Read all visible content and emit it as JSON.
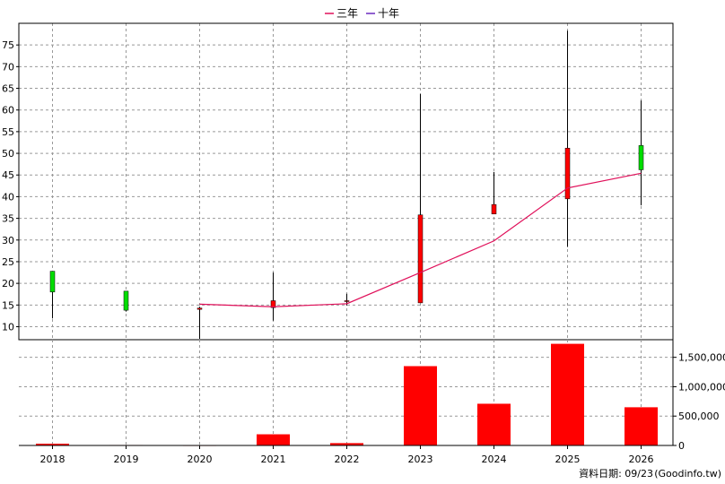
{
  "legend": {
    "ma3_label": "三年",
    "ma10_label": "十年"
  },
  "footer": {
    "date_label": "資料日期: 09/23",
    "source": "(Goodinfo.tw)"
  },
  "colors": {
    "up": "#ff0000",
    "down": "#00dd00",
    "ma3": "#e0105a",
    "ma10": "#6a2bbf",
    "volume": "#ff0000",
    "wick": "#000000",
    "grid": "#999999"
  },
  "chart_data": [
    {
      "type": "candlestick",
      "title": "",
      "ylim": [
        7,
        80
      ],
      "y_ticks": [
        10,
        15,
        20,
        25,
        30,
        35,
        40,
        45,
        50,
        55,
        60,
        65,
        70,
        75
      ],
      "categories": [
        "2018",
        "2019",
        "2020",
        "2021",
        "2022",
        "2023",
        "2024",
        "2025",
        "2026"
      ],
      "candles": [
        {
          "year": "2018",
          "open": 22.8,
          "close": 18.0,
          "high": 22.8,
          "low": 11.9
        },
        {
          "year": "2019",
          "open": 18.2,
          "close": 13.8,
          "high": 18.2,
          "low": 13.5
        },
        {
          "year": "2020",
          "open": 14.0,
          "close": 14.3,
          "high": 14.6,
          "low": 7.2
        },
        {
          "year": "2021",
          "open": 14.4,
          "close": 16.0,
          "high": 22.5,
          "low": 11.4
        },
        {
          "year": "2022",
          "open": 16.0,
          "close": 16.0,
          "high": 17.6,
          "low": 14.9
        },
        {
          "year": "2023",
          "open": 15.5,
          "close": 35.8,
          "high": 63.7,
          "low": 15.5
        },
        {
          "year": "2024",
          "open": 36.0,
          "close": 38.2,
          "high": 45.7,
          "low": 36.0
        },
        {
          "year": "2025",
          "open": 39.5,
          "close": 51.2,
          "high": 78.3,
          "low": 28.4
        },
        {
          "year": "2026",
          "open": 51.8,
          "close": 46.2,
          "high": 62.2,
          "low": 38.0
        }
      ],
      "series": [
        {
          "name": "三年",
          "x": [
            "2020",
            "2021",
            "2022",
            "2023",
            "2024",
            "2025",
            "2026"
          ],
          "values": [
            15.2,
            14.6,
            15.3,
            22.5,
            29.8,
            42.0,
            45.4
          ]
        },
        {
          "name": "十年",
          "x": [],
          "values": []
        }
      ]
    },
    {
      "type": "bar",
      "title": "",
      "ylim": [
        0,
        1800000
      ],
      "y_ticks": [
        0,
        500000,
        1000000,
        1500000
      ],
      "y_tick_labels": [
        "0",
        "500,000",
        "1,000,000",
        "1,500,000"
      ],
      "categories": [
        "2018",
        "2019",
        "2020",
        "2021",
        "2022",
        "2023",
        "2024",
        "2025",
        "2026"
      ],
      "values": [
        30000,
        8000,
        7000,
        190000,
        40000,
        1350000,
        710000,
        1730000,
        650000
      ]
    }
  ]
}
